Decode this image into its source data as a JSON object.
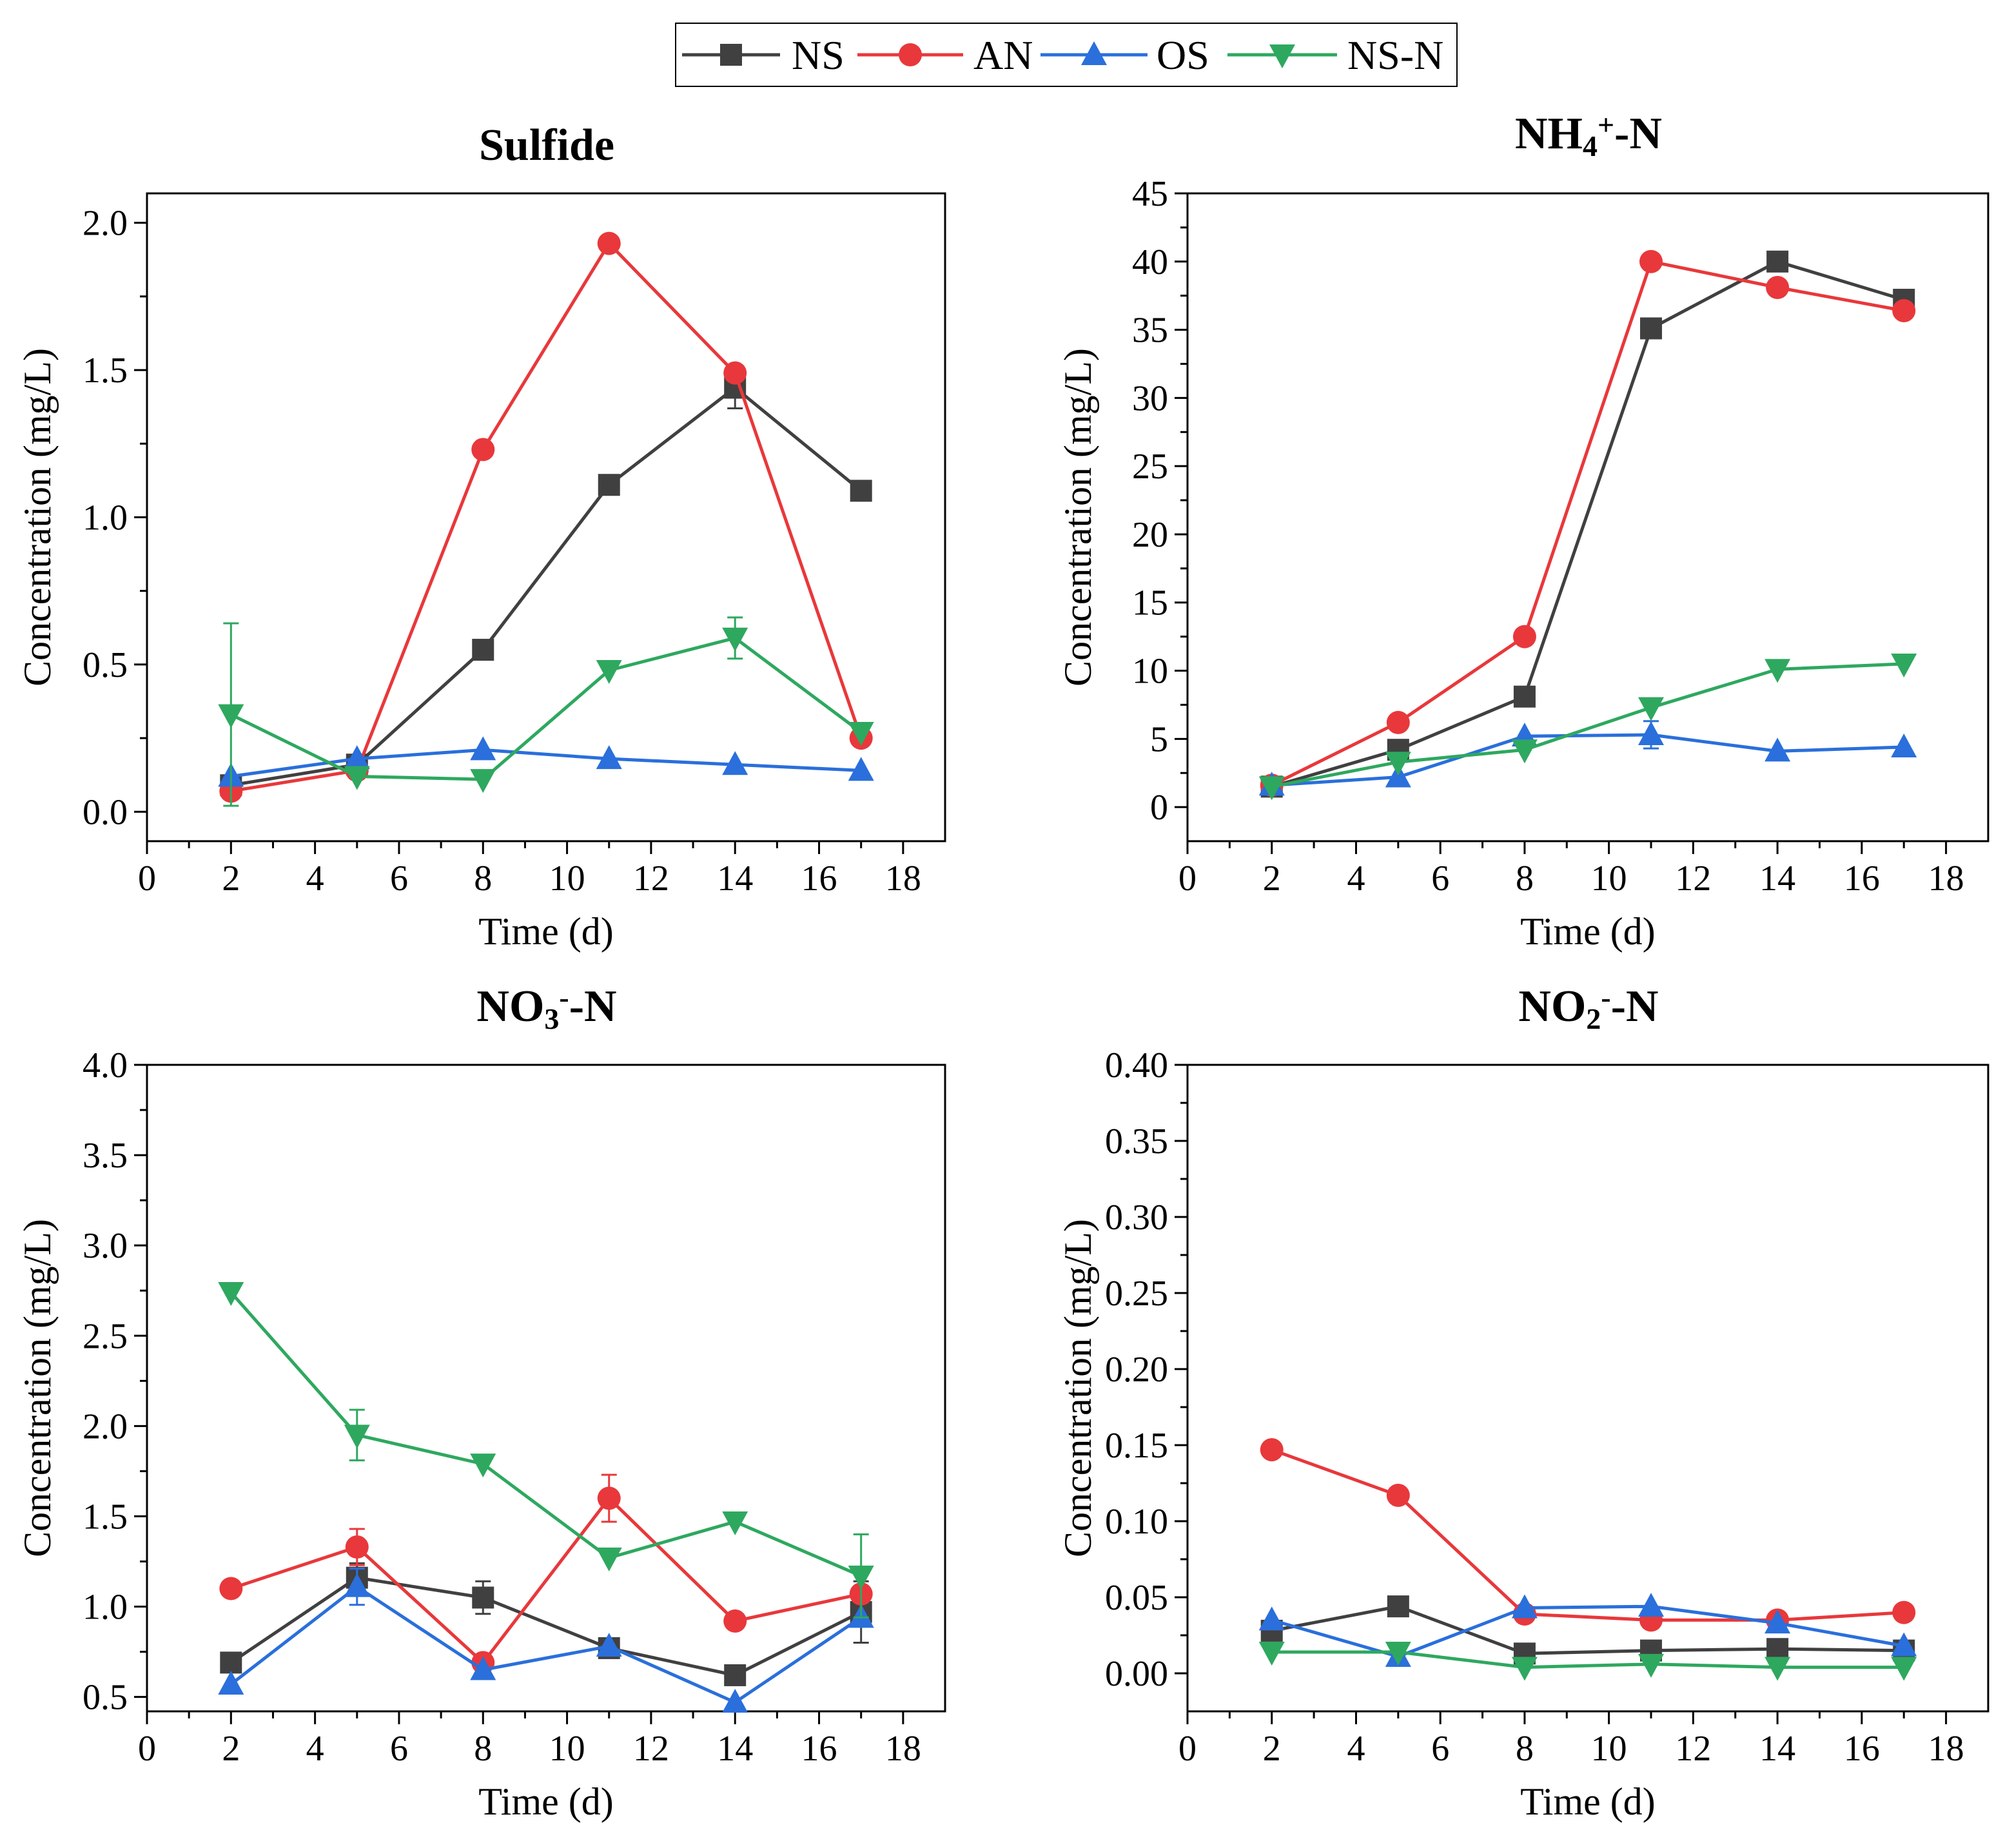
{
  "legend": [
    {
      "name": "NS",
      "color": "#404040",
      "marker": "square"
    },
    {
      "name": "AN",
      "color": "#e8383b",
      "marker": "circle"
    },
    {
      "name": "OS",
      "color": "#2a6fdb",
      "marker": "triangle-up"
    },
    {
      "name": "NS-N",
      "color": "#2ea85f",
      "marker": "triangle-down"
    }
  ],
  "chart_data": [
    {
      "type": "line",
      "title": "Sulfide",
      "title_parts": [
        {
          "t": "Sulfide"
        }
      ],
      "xlabel": "Time (d)",
      "ylabel": "Concentration (mg/L)",
      "xlim": [
        0,
        19
      ],
      "ylim": [
        -0.1,
        2.1
      ],
      "xticks": [
        0,
        2,
        4,
        6,
        8,
        10,
        12,
        14,
        16,
        18
      ],
      "yticks": [
        0.0,
        0.5,
        1.0,
        1.5,
        2.0
      ],
      "ytick_labels": [
        "0.0",
        "0.5",
        "1.0",
        "1.5",
        "2.0"
      ],
      "x": [
        2,
        5,
        8,
        11,
        14,
        17
      ],
      "series": [
        {
          "name": "NS",
          "values": [
            0.09,
            0.16,
            0.55,
            1.11,
            1.44,
            1.09
          ],
          "err": [
            0,
            0,
            0,
            0,
            0.07,
            0
          ]
        },
        {
          "name": "AN",
          "values": [
            0.07,
            0.14,
            1.23,
            1.93,
            1.49,
            0.25
          ],
          "err": [
            0,
            0,
            0,
            0,
            0,
            0
          ]
        },
        {
          "name": "OS",
          "values": [
            0.12,
            0.18,
            0.21,
            0.18,
            0.16,
            0.14
          ],
          "err": [
            0,
            0,
            0,
            0,
            0,
            0
          ]
        },
        {
          "name": "NS-N",
          "values": [
            0.33,
            0.12,
            0.11,
            0.48,
            0.59,
            0.27
          ],
          "err": [
            0.31,
            0,
            0,
            0,
            0.07,
            0
          ]
        }
      ]
    },
    {
      "type": "line",
      "title": "NH4+-N",
      "title_parts": [
        {
          "t": "NH"
        },
        {
          "t": "4",
          "sub": true
        },
        {
          "t": "+",
          "sup": true
        },
        {
          "t": "-N"
        }
      ],
      "xlabel": "Time (d)",
      "ylabel": "Concentration (mg/L)",
      "xlim": [
        0,
        19
      ],
      "ylim": [
        -2.5,
        45
      ],
      "xticks": [
        0,
        2,
        4,
        6,
        8,
        10,
        12,
        14,
        16,
        18
      ],
      "yticks": [
        0,
        5,
        10,
        15,
        20,
        25,
        30,
        35,
        40,
        45
      ],
      "ytick_labels": [
        "0",
        "5",
        "10",
        "15",
        "20",
        "25",
        "30",
        "35",
        "40",
        "45"
      ],
      "x": [
        2,
        5,
        8,
        11,
        14,
        17
      ],
      "series": [
        {
          "name": "NS",
          "values": [
            1.5,
            4.2,
            8.1,
            35.1,
            40.0,
            37.2
          ],
          "err": [
            0,
            0,
            0,
            0,
            0,
            0
          ]
        },
        {
          "name": "AN",
          "values": [
            1.6,
            6.2,
            12.5,
            40.0,
            38.1,
            36.4
          ],
          "err": [
            0,
            0,
            0,
            0,
            0,
            0
          ]
        },
        {
          "name": "OS",
          "values": [
            1.6,
            2.2,
            5.2,
            5.3,
            4.1,
            4.4
          ],
          "err": [
            0,
            0,
            0,
            1.0,
            0,
            0
          ]
        },
        {
          "name": "NS-N",
          "values": [
            1.5,
            3.3,
            4.2,
            7.3,
            10.1,
            10.5
          ],
          "err": [
            0,
            0,
            0,
            0,
            0,
            0
          ]
        }
      ]
    },
    {
      "type": "line",
      "title": "NO3--N",
      "title_parts": [
        {
          "t": "NO"
        },
        {
          "t": "3",
          "sub": true
        },
        {
          "t": "-",
          "sup": true
        },
        {
          "t": "-N"
        }
      ],
      "xlabel": "Time (d)",
      "ylabel": "Concentration (mg/L)",
      "xlim": [
        0,
        19
      ],
      "ylim": [
        0.42,
        4.0
      ],
      "xticks": [
        0,
        2,
        4,
        6,
        8,
        10,
        12,
        14,
        16,
        18
      ],
      "yticks": [
        0.5,
        1.0,
        1.5,
        2.0,
        2.5,
        3.0,
        3.5,
        4.0
      ],
      "ytick_labels": [
        "0.5",
        "1.0",
        "1.5",
        "2.0",
        "2.5",
        "3.0",
        "3.5",
        "4.0"
      ],
      "x": [
        2,
        5,
        8,
        11,
        14,
        17
      ],
      "series": [
        {
          "name": "NS",
          "values": [
            0.69,
            1.16,
            1.05,
            0.77,
            0.62,
            0.97
          ],
          "err": [
            0,
            0.08,
            0.09,
            0,
            0,
            0.17
          ]
        },
        {
          "name": "AN",
          "values": [
            1.1,
            1.33,
            0.69,
            1.6,
            0.92,
            1.07
          ],
          "err": [
            0,
            0.1,
            0,
            0.13,
            0,
            0
          ]
        },
        {
          "name": "OS",
          "values": [
            0.57,
            1.11,
            0.65,
            0.78,
            0.47,
            0.94
          ],
          "err": [
            0,
            0.1,
            0,
            0,
            0,
            0
          ]
        },
        {
          "name": "NS-N",
          "values": [
            2.74,
            1.95,
            1.79,
            1.27,
            1.47,
            1.17
          ],
          "err": [
            0,
            0.14,
            0,
            0,
            0,
            0.23
          ]
        }
      ]
    },
    {
      "type": "line",
      "title": "NO2--N",
      "title_parts": [
        {
          "t": "NO"
        },
        {
          "t": "2",
          "sub": true
        },
        {
          "t": "-",
          "sup": true
        },
        {
          "t": "-N"
        }
      ],
      "xlabel": "Time (d)",
      "ylabel": "Concentration (mg/L)",
      "xlim": [
        0,
        19
      ],
      "ylim": [
        -0.025,
        0.4
      ],
      "xticks": [
        0,
        2,
        4,
        6,
        8,
        10,
        12,
        14,
        16,
        18
      ],
      "yticks": [
        0.0,
        0.05,
        0.1,
        0.15,
        0.2,
        0.25,
        0.3,
        0.35,
        0.4
      ],
      "ytick_labels": [
        "0.00",
        "0.05",
        "0.10",
        "0.15",
        "0.20",
        "0.25",
        "0.30",
        "0.35",
        "0.40"
      ],
      "x": [
        2,
        5,
        8,
        11,
        14,
        17
      ],
      "series": [
        {
          "name": "NS",
          "values": [
            0.028,
            0.044,
            0.013,
            0.015,
            0.016,
            0.015
          ],
          "err": [
            0,
            0,
            0,
            0,
            0,
            0
          ]
        },
        {
          "name": "AN",
          "values": [
            0.147,
            0.117,
            0.039,
            0.035,
            0.035,
            0.04
          ],
          "err": [
            0.004,
            0,
            0,
            0,
            0,
            0
          ]
        },
        {
          "name": "OS",
          "values": [
            0.035,
            0.011,
            0.043,
            0.044,
            0.033,
            0.018
          ],
          "err": [
            0,
            0,
            0,
            0,
            0,
            0
          ]
        },
        {
          "name": "NS-N",
          "values": [
            0.014,
            0.014,
            0.004,
            0.006,
            0.004,
            0.004
          ],
          "err": [
            0,
            0,
            0,
            0,
            0,
            0
          ]
        }
      ]
    }
  ]
}
